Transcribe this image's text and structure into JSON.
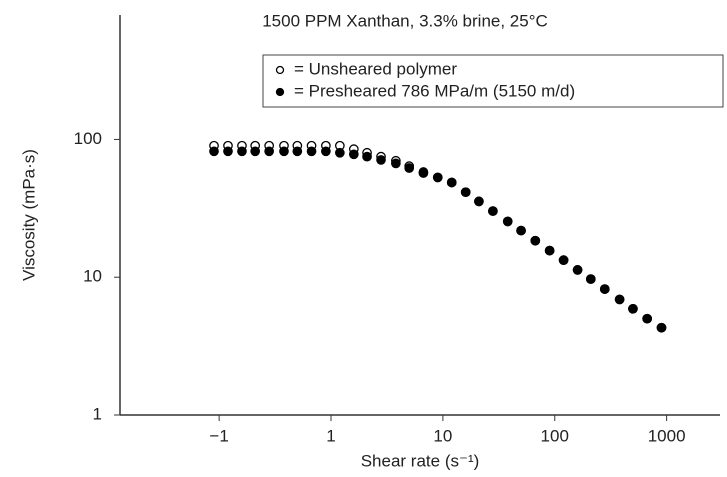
{
  "chart_data": {
    "type": "scatter",
    "title": "1500 PPM Xanthan, 3.3% brine, 25°C",
    "x_label": "Shear rate (s⁻¹)",
    "y_label": "Viscosity (mPa·s)",
    "log_x": true,
    "log_y": true,
    "xlim": [
      0.013,
      3000
    ],
    "ylim": [
      1,
      800
    ],
    "xticks": [
      {
        "value": 0.1,
        "label": "−1"
      },
      1,
      10,
      100,
      1000
    ],
    "yticks": [
      1,
      10,
      100
    ],
    "x": [
      0.09,
      0.12,
      0.16,
      0.21,
      0.28,
      0.38,
      0.5,
      0.67,
      0.9,
      1.2,
      1.6,
      2.1,
      2.8,
      3.8,
      5,
      6.7,
      9,
      12,
      16,
      21,
      28,
      38,
      50,
      67,
      90,
      120,
      160,
      210,
      280,
      380,
      500,
      670,
      900
    ],
    "series": [
      {
        "name": "= Unsheared polymer",
        "color": "#000000",
        "marker": "open",
        "values": [
          90,
          90,
          90,
          90,
          90,
          90,
          90,
          90,
          90,
          90,
          85,
          80,
          75,
          70,
          64,
          58,
          53,
          48.7,
          41.4,
          35.5,
          30.2,
          25.4,
          21.8,
          18.4,
          15.6,
          13.3,
          11.3,
          9.7,
          8.2,
          6.9,
          5.9,
          5.0,
          4.3
        ]
      },
      {
        "name": "= Presheared 786 MPa/m (5150 m/d)",
        "color": "#000000",
        "marker": "filled",
        "values": [
          82,
          82,
          82,
          82,
          82,
          82,
          82,
          82,
          82,
          80,
          78,
          75,
          71,
          67,
          62,
          57,
          53,
          48.7,
          41.4,
          35.5,
          30.2,
          25.4,
          21.8,
          18.4,
          15.6,
          13.3,
          11.3,
          9.7,
          8.2,
          6.9,
          5.9,
          5.0,
          4.3
        ]
      }
    ]
  }
}
